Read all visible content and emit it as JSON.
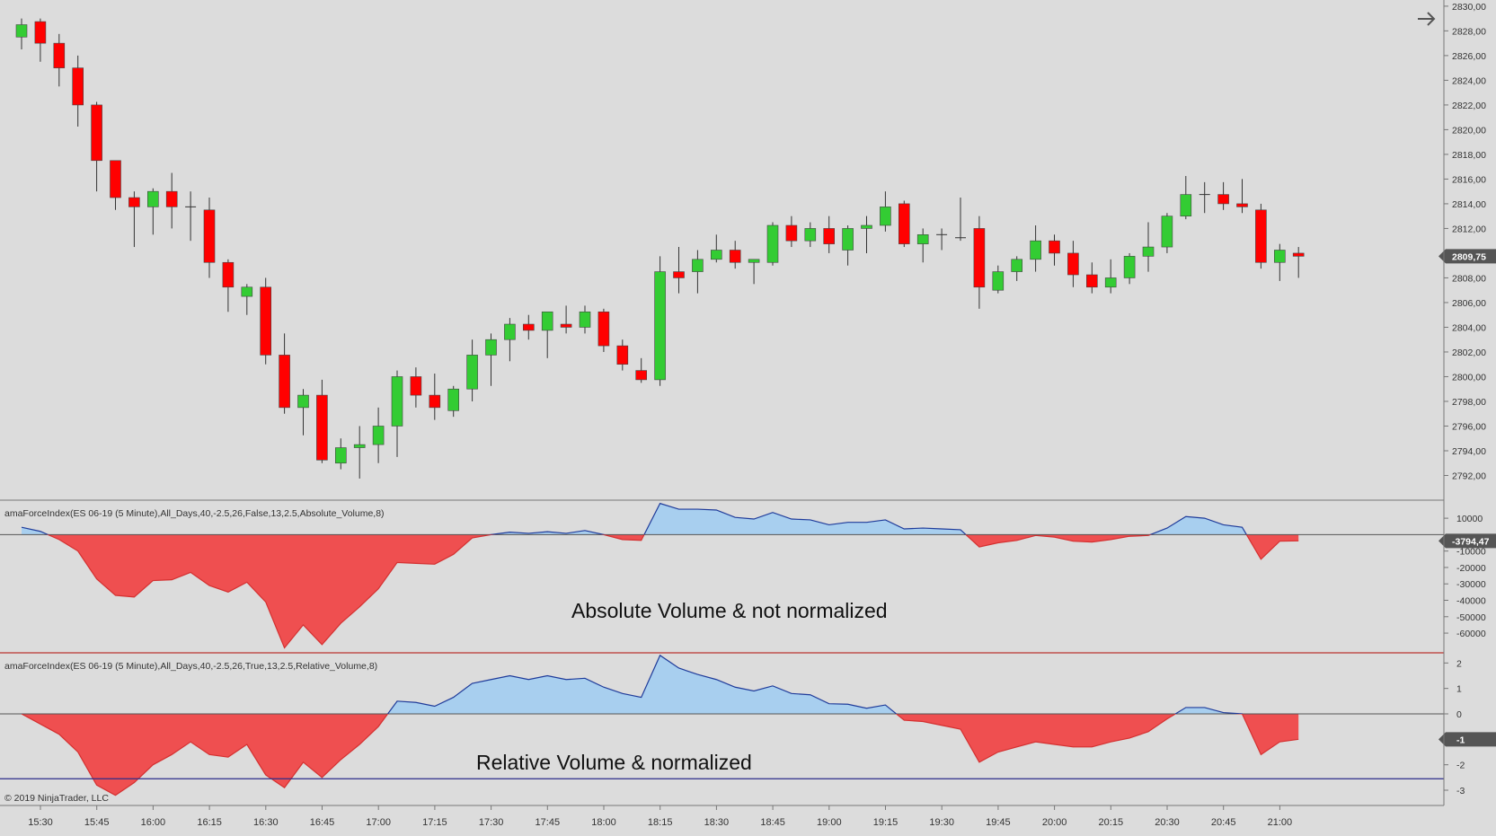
{
  "colors": {
    "background": "#dcdcdc",
    "up_candle": "#33cc33",
    "down_candle": "#ff0000",
    "wick": "#333333",
    "positive_fill": "#a8cfef",
    "negative_fill": "#ef4f50",
    "force_line": "#1f3b9a",
    "axis_text": "#333333",
    "marker_bg": "#555555",
    "marker_text": "#ffffff"
  },
  "top_right_icon": "arrow-right-icon",
  "copyright": "© 2019 NinjaTrader, LLC",
  "chart_data": [
    {
      "type": "candlestick",
      "panel": "price",
      "x_ticks": [
        "15:30",
        "15:45",
        "16:00",
        "16:15",
        "16:30",
        "16:45",
        "17:00",
        "17:15",
        "17:30",
        "17:45",
        "18:00",
        "18:15",
        "18:30",
        "18:45",
        "19:00",
        "19:15",
        "19:30",
        "19:45",
        "20:00",
        "20:15",
        "20:30",
        "20:45",
        "21:00"
      ],
      "y_ticks": [
        "2830,00",
        "2828,00",
        "2826,00",
        "2824,00",
        "2822,00",
        "2820,00",
        "2818,00",
        "2816,00",
        "2814,00",
        "2812,00",
        "2810,00",
        "2808,00",
        "2806,00",
        "2804,00",
        "2802,00",
        "2800,00",
        "2798,00",
        "2796,00",
        "2794,00",
        "2792,00"
      ],
      "ylim": [
        2790,
        2830.5
      ],
      "last_price_label": "2809,75",
      "last_price": 2809.75,
      "ohlc": [
        [
          2827.5,
          2829,
          2826.5,
          2828.5
        ],
        [
          2828.75,
          2829,
          2825.5,
          2827
        ],
        [
          2827,
          2827.75,
          2823.5,
          2825
        ],
        [
          2825,
          2826,
          2820.25,
          2822
        ],
        [
          2822,
          2822.25,
          2815,
          2817.5
        ],
        [
          2817.5,
          2817.5,
          2813.5,
          2814.5
        ],
        [
          2814.5,
          2815,
          2810.5,
          2813.75
        ],
        [
          2813.75,
          2815.25,
          2811.5,
          2815
        ],
        [
          2815,
          2816.5,
          2812,
          2813.75
        ],
        [
          2813.75,
          2815,
          2811,
          2813.75
        ],
        [
          2813.5,
          2814.5,
          2808,
          2809.25
        ],
        [
          2809.25,
          2809.5,
          2805.25,
          2807.25
        ],
        [
          2806.5,
          2807.5,
          2805,
          2807.25
        ],
        [
          2807.25,
          2808,
          2801,
          2801.75
        ],
        [
          2801.75,
          2803.5,
          2797,
          2797.5
        ],
        [
          2797.5,
          2799,
          2795.25,
          2798.5
        ],
        [
          2798.5,
          2799.75,
          2793,
          2793.25
        ],
        [
          2793,
          2795,
          2792.5,
          2794.25
        ],
        [
          2794.25,
          2796,
          2791.75,
          2794.5
        ],
        [
          2794.5,
          2797.5,
          2793,
          2796
        ],
        [
          2796,
          2800.5,
          2793.5,
          2800
        ],
        [
          2800,
          2800.75,
          2797.5,
          2798.5
        ],
        [
          2798.5,
          2800.25,
          2796.5,
          2797.5
        ],
        [
          2797.25,
          2799.25,
          2796.75,
          2799
        ],
        [
          2799,
          2803,
          2798,
          2801.75
        ],
        [
          2801.75,
          2803.5,
          2799.25,
          2803
        ],
        [
          2803,
          2804.75,
          2801.25,
          2804.25
        ],
        [
          2804.25,
          2805,
          2803,
          2803.75
        ],
        [
          2803.75,
          2805.25,
          2801.5,
          2805.25
        ],
        [
          2804.25,
          2805.75,
          2803.5,
          2804
        ],
        [
          2804,
          2805.75,
          2803.5,
          2805.25
        ],
        [
          2805.25,
          2805.5,
          2802,
          2802.5
        ],
        [
          2802.5,
          2803,
          2800.5,
          2801
        ],
        [
          2800.5,
          2801.5,
          2799.5,
          2799.75
        ],
        [
          2799.75,
          2809.75,
          2799.25,
          2808.5
        ],
        [
          2808.5,
          2810.5,
          2806.75,
          2808
        ],
        [
          2808.5,
          2810.25,
          2806.75,
          2809.5
        ],
        [
          2809.5,
          2811.5,
          2809.25,
          2810.25
        ],
        [
          2810.25,
          2811,
          2808.75,
          2809.25
        ],
        [
          2809.25,
          2809.5,
          2807.5,
          2809.5
        ],
        [
          2809.25,
          2812.5,
          2809,
          2812.25
        ],
        [
          2812.25,
          2813,
          2810.5,
          2811
        ],
        [
          2811,
          2812.5,
          2810.5,
          2812
        ],
        [
          2812,
          2813,
          2810,
          2810.75
        ],
        [
          2810.25,
          2812.25,
          2809,
          2812
        ],
        [
          2812,
          2813,
          2810,
          2812.25
        ],
        [
          2812.25,
          2815,
          2811.75,
          2813.75
        ],
        [
          2814,
          2814.25,
          2810.5,
          2810.75
        ],
        [
          2810.75,
          2812,
          2809.25,
          2811.5
        ],
        [
          2811.5,
          2812,
          2810.25,
          2811.5
        ],
        [
          2811.25,
          2814.5,
          2811,
          2811.25
        ],
        [
          2812,
          2813,
          2805.5,
          2807.25
        ],
        [
          2807,
          2809,
          2806.75,
          2808.5
        ],
        [
          2808.5,
          2809.75,
          2807.75,
          2809.5
        ],
        [
          2809.5,
          2812.25,
          2808.5,
          2811
        ],
        [
          2811,
          2811.5,
          2809,
          2810
        ],
        [
          2810,
          2811,
          2807.25,
          2808.25
        ],
        [
          2808.25,
          2809.25,
          2806.75,
          2807.25
        ],
        [
          2807.25,
          2809.5,
          2806.75,
          2808
        ],
        [
          2808,
          2810,
          2807.5,
          2809.75
        ],
        [
          2809.75,
          2812.5,
          2808.5,
          2810.5
        ],
        [
          2810.5,
          2813.25,
          2810,
          2813
        ],
        [
          2813,
          2816.25,
          2812.75,
          2814.75
        ],
        [
          2814.75,
          2815.75,
          2813.25,
          2814.75
        ],
        [
          2814.75,
          2815.75,
          2813.5,
          2814
        ],
        [
          2814,
          2816,
          2813.25,
          2813.75
        ],
        [
          2813.5,
          2814,
          2808.75,
          2809.25
        ],
        [
          2809.25,
          2810.75,
          2807.75,
          2810.25
        ],
        [
          2810,
          2810.5,
          2808,
          2809.75
        ]
      ]
    },
    {
      "type": "area",
      "panel": "indicator-1",
      "title": "amaForceIndex(ES 06-19 (5 Minute),All_Days,40,-2.5,26,False,13,2.5,Absolute_Volume,8)",
      "annotation": "Absolute Volume & not normalized",
      "y_ticks": [
        "10000",
        "-10000",
        "-20000",
        "-30000",
        "-40000",
        "-50000",
        "-60000"
      ],
      "ylim": [
        -72000,
        21000
      ],
      "current_value_label": "-3794,47",
      "current_value": -3794.47,
      "values": [
        4500,
        2000,
        -3000,
        -10000,
        -27000,
        -37000,
        -38000,
        -28000,
        -27500,
        -23000,
        -31000,
        -35000,
        -29000,
        -41000,
        -69000,
        -55000,
        -67000,
        -54000,
        -44000,
        -33000,
        -17000,
        -17500,
        -18000,
        -12000,
        -2000,
        0,
        1500,
        800,
        1800,
        800,
        2500,
        0,
        -3000,
        -3500,
        19000,
        15500,
        15500,
        15000,
        10500,
        9500,
        13500,
        9500,
        9000,
        6000,
        7500,
        7500,
        9000,
        3500,
        4000,
        3500,
        3000,
        -7500,
        -5000,
        -3500,
        -500,
        -1500,
        -4000,
        -4500,
        -3000,
        -1000,
        -500,
        4000,
        11000,
        10000,
        6000,
        4500,
        -15000,
        -4000,
        -3794
      ]
    },
    {
      "type": "area",
      "panel": "indicator-2",
      "title": "amaForceIndex(ES 06-19 (5 Minute),All_Days,40,-2.5,26,True,13,2.5,Relative_Volume,8)",
      "annotation": "Relative Volume & normalized",
      "y_ticks": [
        "2",
        "1",
        "0",
        "-1",
        "-2",
        "-3"
      ],
      "ylim": [
        -3.6,
        2.4
      ],
      "current_value_label": "-1",
      "reference_line": -2.55,
      "values": [
        0,
        -0.4,
        -0.8,
        -1.5,
        -2.8,
        -3.2,
        -2.7,
        -2.0,
        -1.6,
        -1.1,
        -1.6,
        -1.7,
        -1.2,
        -2.4,
        -2.9,
        -1.9,
        -2.5,
        -1.8,
        -1.2,
        -0.5,
        0.5,
        0.45,
        0.3,
        0.65,
        1.2,
        1.35,
        1.5,
        1.35,
        1.5,
        1.35,
        1.4,
        1.05,
        0.8,
        0.65,
        2.3,
        1.8,
        1.55,
        1.35,
        1.05,
        0.9,
        1.1,
        0.8,
        0.75,
        0.4,
        0.38,
        0.22,
        0.35,
        -0.25,
        -0.3,
        -0.45,
        -0.6,
        -1.9,
        -1.5,
        -1.3,
        -1.1,
        -1.2,
        -1.3,
        -1.3,
        -1.1,
        -0.95,
        -0.7,
        -0.2,
        0.25,
        0.25,
        0.05,
        0.0,
        -1.6,
        -1.1,
        -1.0
      ]
    }
  ]
}
